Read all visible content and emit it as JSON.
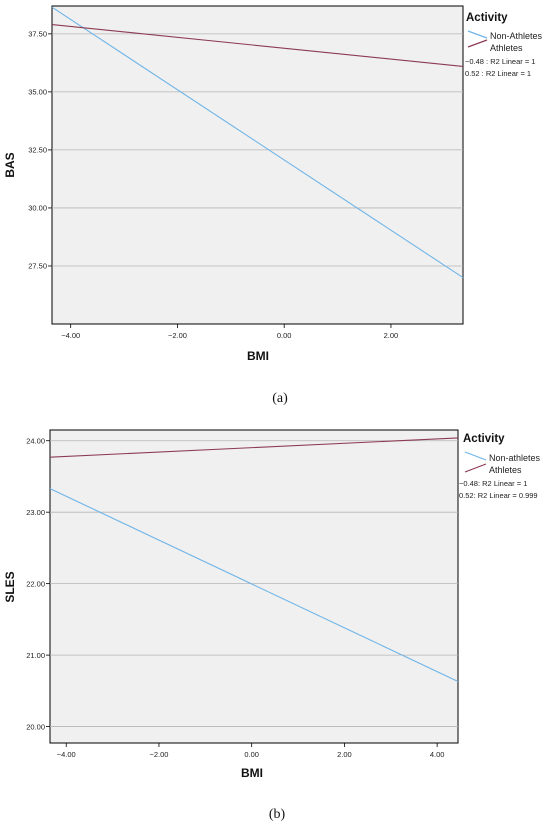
{
  "chart_data": [
    {
      "type": "line",
      "panel": "(a)",
      "xlabel": "BMI",
      "ylabel": "BAS",
      "xlim": [
        -4.35,
        3.35
      ],
      "ylim": [
        25.0,
        38.7
      ],
      "xticks": [
        "-4.00",
        "-2.00",
        "0.00",
        "2.00"
      ],
      "yticks": [
        "27.50",
        "30.00",
        "32.50",
        "35.00",
        "37.50"
      ],
      "grid": "horizontal",
      "legend_title": "Activity",
      "legend_position": "right",
      "series": [
        {
          "name": "Non-Athletes",
          "color": "#6fb5e8",
          "x": [
            -4.35,
            3.35
          ],
          "y": [
            38.65,
            27.0
          ]
        },
        {
          "name": "Athletes",
          "color": "#8c3b52",
          "x": [
            -4.35,
            3.35
          ],
          "y": [
            37.9,
            36.1
          ]
        }
      ],
      "fit_annotations": [
        "−0.48 : R2 Linear = 1",
        "0.52 : R2 Linear = 1"
      ]
    },
    {
      "type": "line",
      "panel": "(b)",
      "xlabel": "BMI",
      "ylabel": "SLES",
      "xlim": [
        -4.35,
        4.45
      ],
      "ylim": [
        19.77,
        24.15
      ],
      "xticks": [
        "-4.00",
        "-2.00",
        "0.00",
        "2.00",
        "4.00"
      ],
      "yticks": [
        "20.00",
        "21.00",
        "22.00",
        "23.00",
        "24.00"
      ],
      "grid": "horizontal",
      "legend_title": "Activity",
      "legend_position": "right",
      "series": [
        {
          "name": "Non-athletes",
          "color": "#6fb5e8",
          "x": [
            -4.35,
            4.45
          ],
          "y": [
            23.33,
            20.63
          ]
        },
        {
          "name": "Athletes",
          "color": "#8c3b52",
          "x": [
            -4.35,
            4.45
          ],
          "y": [
            23.77,
            24.04
          ]
        }
      ],
      "fit_annotations": [
        "−0.48: R2 Linear = 1",
        "0.52: R2 Linear = 0.999"
      ]
    }
  ]
}
